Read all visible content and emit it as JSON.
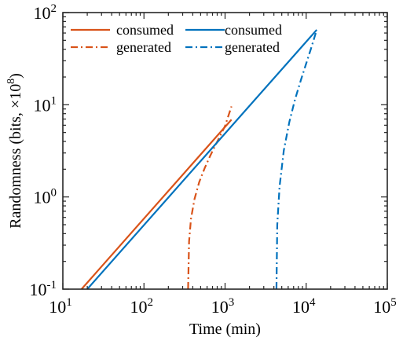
{
  "chart_data": {
    "type": "line",
    "xlabel": "Time (min)",
    "ylabel": "Randomness (bits, ×10",
    "ylabel_exp": "8",
    "ylabel_close": ")",
    "x_scale": "log",
    "y_scale": "log",
    "xlim": [
      10,
      100000
    ],
    "ylim": [
      0.1,
      100
    ],
    "x_ticks": [
      {
        "base": "10",
        "exp": "1",
        "value": 10
      },
      {
        "base": "10",
        "exp": "2",
        "value": 100
      },
      {
        "base": "10",
        "exp": "3",
        "value": 1000
      },
      {
        "base": "10",
        "exp": "4",
        "value": 10000
      },
      {
        "base": "10",
        "exp": "5",
        "value": 100000
      }
    ],
    "y_ticks": [
      {
        "base": "10",
        "exp": "-1",
        "value": 0.1
      },
      {
        "base": "10",
        "exp": "0",
        "value": 1
      },
      {
        "base": "10",
        "exp": "1",
        "value": 10
      },
      {
        "base": "10",
        "exp": "2",
        "value": 100
      }
    ],
    "grid": false,
    "legend_position": "top-left",
    "series": [
      {
        "name": "consumed",
        "color": "#D95319",
        "style": "solid",
        "x": [
          17,
          1200
        ],
        "y": [
          0.1,
          6.9
        ]
      },
      {
        "name": "generated",
        "color": "#D95319",
        "style": "dashdot",
        "x": [
          350,
          360,
          380,
          420,
          480,
          560,
          650,
          750,
          870,
          1000,
          1200
        ],
        "y": [
          0.1,
          0.33,
          0.58,
          0.95,
          1.45,
          2.05,
          2.75,
          3.55,
          4.6,
          5.9,
          9.6
        ]
      },
      {
        "name": "consumed",
        "color": "#0072BD",
        "style": "solid",
        "x": [
          20,
          13500
        ],
        "y": [
          0.1,
          65
        ]
      },
      {
        "name": "generated",
        "color": "#0072BD",
        "style": "dashdot",
        "x": [
          4300,
          4400,
          4700,
          5300,
          6200,
          7300,
          8600,
          10000,
          11500,
          13200
        ],
        "y": [
          0.1,
          0.5,
          1.3,
          3.2,
          6.5,
          11.5,
          18.5,
          28,
          41,
          61
        ]
      }
    ]
  }
}
